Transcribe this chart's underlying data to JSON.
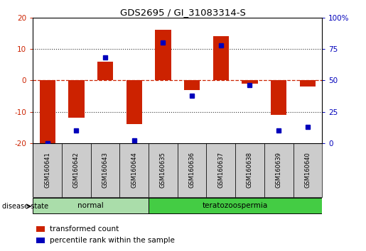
{
  "title": "GDS2695 / GI_31083314-S",
  "samples": [
    "GSM160641",
    "GSM160642",
    "GSM160643",
    "GSM160644",
    "GSM160635",
    "GSM160636",
    "GSM160637",
    "GSM160638",
    "GSM160639",
    "GSM160640"
  ],
  "groups": [
    "normal",
    "normal",
    "normal",
    "normal",
    "teratozoospermia",
    "teratozoospermia",
    "teratozoospermia",
    "teratozoospermia",
    "teratozoospermia",
    "teratozoospermia"
  ],
  "red_bars": [
    -20,
    -12,
    6,
    -14,
    16,
    -3,
    14,
    -1,
    -11,
    -2
  ],
  "blue_dots_pct": [
    0,
    10,
    68,
    2,
    80,
    38,
    78,
    46,
    10,
    13
  ],
  "ylim_left": [
    -20,
    20
  ],
  "ylim_right": [
    0,
    100
  ],
  "yticks_left": [
    -20,
    -10,
    0,
    10,
    20
  ],
  "yticks_right": [
    0,
    25,
    50,
    75,
    100
  ],
  "ytick_labels_right": [
    "0",
    "25",
    "50",
    "75",
    "100%"
  ],
  "normal_color": "#AADDAA",
  "terato_color": "#44CC44",
  "bar_color": "#CC2200",
  "dot_color": "#0000BB",
  "zero_line_color": "#CC2200",
  "grid_color": "#333333",
  "sample_box_color": "#CCCCCC",
  "label_fontsize": 7.5,
  "title_fontsize": 9.5,
  "disease_state_label": "disease state",
  "legend_item_bar": "transformed count",
  "legend_item_dot": "percentile rank within the sample",
  "bar_width": 0.55
}
